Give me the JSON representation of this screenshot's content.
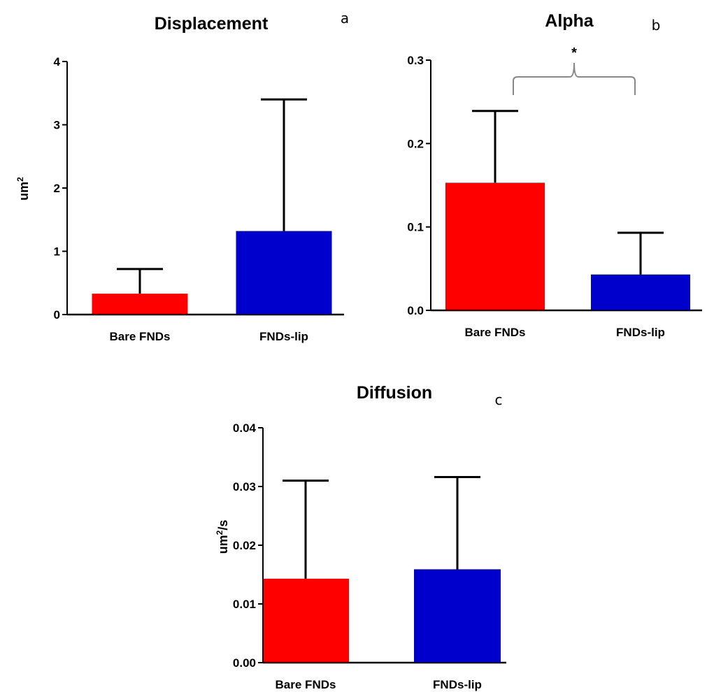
{
  "chart_data": [
    {
      "type": "bar",
      "panel": "a",
      "title": "Displacement",
      "ylabel": "um²",
      "categories": [
        "Bare FNDs",
        "FNDs-lip"
      ],
      "values": [
        0.33,
        1.32
      ],
      "error_upper": [
        0.72,
        3.4
      ],
      "colors": [
        "#ff0000",
        "#0000cc"
      ],
      "ylim": [
        0,
        4
      ],
      "yticks": [
        "0",
        "1",
        "2",
        "3",
        "4"
      ],
      "ytick_values": [
        0,
        1,
        2,
        3,
        4
      ]
    },
    {
      "type": "bar",
      "panel": "b",
      "title": "Alpha",
      "ylabel": "",
      "categories": [
        "Bare FNDs",
        "FNDs-lip"
      ],
      "values": [
        0.153,
        0.043
      ],
      "error_upper": [
        0.239,
        0.093
      ],
      "colors": [
        "#ff0000",
        "#0000cc"
      ],
      "ylim": [
        0,
        0.3
      ],
      "yticks": [
        "0.0",
        "0.1",
        "0.2",
        "0.3"
      ],
      "ytick_values": [
        0,
        0.1,
        0.2,
        0.3
      ],
      "significance": "*"
    },
    {
      "type": "bar",
      "panel": "c",
      "title": "Diffusion",
      "ylabel": "um²/s",
      "categories": [
        "Bare FNDs",
        "FNDs-lip"
      ],
      "values": [
        0.0143,
        0.0159
      ],
      "error_upper": [
        0.031,
        0.0316
      ],
      "colors": [
        "#ff0000",
        "#0000cc"
      ],
      "ylim": [
        0,
        0.04
      ],
      "yticks": [
        "0.00",
        "0.01",
        "0.02",
        "0.03",
        "0.04"
      ],
      "ytick_values": [
        0,
        0.01,
        0.02,
        0.03,
        0.04
      ]
    }
  ]
}
